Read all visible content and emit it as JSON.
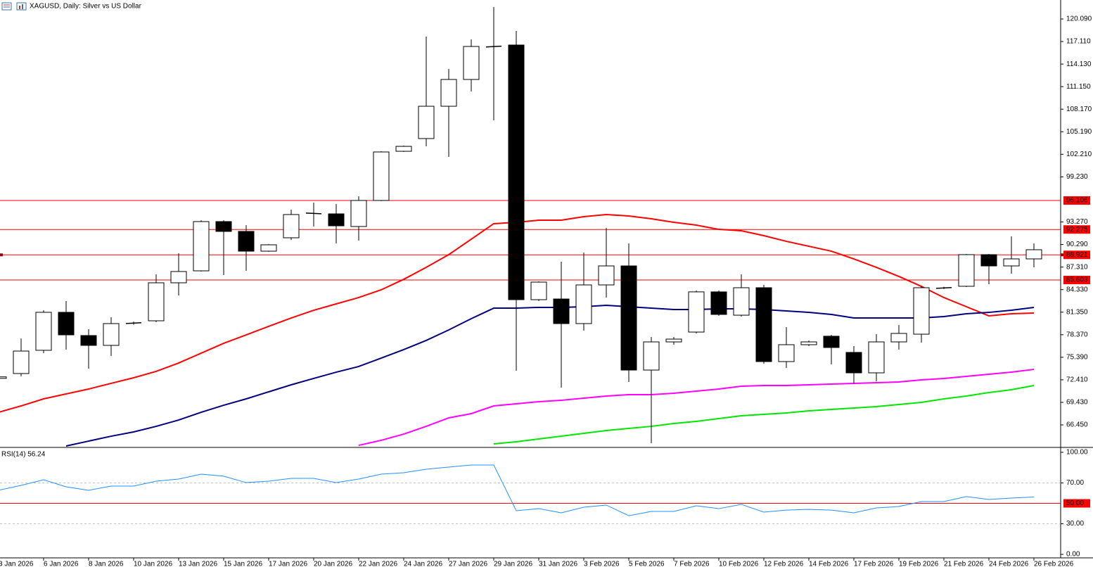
{
  "chart_data": [
    {
      "type": "candlestick",
      "title": "XAGUSD, Daily:  Silver vs US Dollar",
      "categories": [
        "3 Jan 2026",
        null,
        "6 Jan 2026",
        null,
        "8 Jan 2026",
        null,
        "10 Jan 2026",
        null,
        "13 Jan 2026",
        null,
        "15 Jan 2026",
        null,
        "17 Jan 2026",
        null,
        "20 Jan 2026",
        null,
        "22 Jan 2026",
        null,
        "24 Jan 2026",
        null,
        "27 Jan 2026",
        null,
        "29 Jan 2026",
        null,
        "31 Jan 2026",
        null,
        "3 Feb 2026",
        null,
        "5 Feb 2026",
        null,
        "7 Feb 2026",
        null,
        "10 Feb 2026",
        null,
        "12 Feb 2026",
        null,
        "14 Feb 2026",
        null,
        "17 Feb 2026",
        null,
        "19 Feb 2026",
        null,
        "21 Feb 2026",
        null,
        "24 Feb 2026",
        null,
        "26 Feb 2026"
      ],
      "open": [
        72.6,
        73.24,
        76.31,
        81.33,
        78.26,
        76.96,
        79.85,
        80.21,
        85.23,
        86.81,
        93.32,
        92.02,
        89.41,
        91.18,
        94.45,
        94.34,
        92.67,
        96.11,
        102.61,
        104.29,
        108.56,
        112.1,
        116.4,
        116.65,
        83.0,
        83.09,
        79.84,
        84.95,
        87.46,
        73.7,
        77.42,
        78.72,
        84.03,
        80.95,
        84.58,
        74.82,
        77.05,
        78.17,
        76.03,
        73.33,
        77.42,
        78.44,
        84.5,
        84.77,
        88.95,
        87.46,
        88.39
      ],
      "high": [
        72.9,
        77.88,
        81.6,
        82.81,
        79.09,
        80.67,
        80.1,
        86.35,
        89.13,
        93.5,
        93.5,
        92.85,
        90.34,
        94.9,
        95.83,
        95.64,
        96.66,
        102.61,
        103.36,
        117.77,
        113.49,
        117.39,
        121.67,
        118.51,
        85.42,
        88.02,
        89.23,
        92.48,
        90.43,
        78.07,
        78.07,
        84.21,
        84.21,
        86.35,
        84.95,
        79.37,
        77.61,
        78.35,
        76.86,
        78.44,
        79.65,
        84.77,
        84.7,
        89.04,
        89.04,
        91.37,
        90.43
      ],
      "low": [
        72.5,
        72.87,
        75.93,
        76.4,
        73.89,
        75.56,
        79.7,
        80.02,
        83.56,
        86.72,
        86.25,
        86.81,
        89.32,
        90.9,
        92.67,
        90.43,
        90.81,
        96.02,
        102.52,
        103.26,
        101.87,
        110.52,
        106.7,
        73.61,
        82.81,
        71.38,
        78.91,
        83.28,
        72.12,
        64.03,
        77.05,
        78.54,
        80.86,
        80.77,
        74.54,
        73.98,
        76.86,
        74.45,
        71.94,
        72.21,
        76.4,
        77.33,
        84.4,
        84.67,
        85.04,
        86.44,
        87.28
      ],
      "close": [
        72.8,
        76.21,
        81.33,
        78.35,
        76.96,
        79.84,
        79.95,
        85.23,
        86.72,
        93.32,
        92.02,
        89.41,
        90.25,
        94.25,
        94.35,
        92.76,
        96.11,
        102.52,
        103.26,
        108.56,
        112.1,
        116.46,
        116.5,
        83.0,
        85.32,
        79.84,
        84.95,
        87.46,
        73.7,
        77.42,
        77.79,
        84.03,
        81.05,
        84.58,
        74.82,
        77.05,
        77.42,
        76.68,
        73.33,
        77.42,
        78.54,
        84.58,
        84.6,
        88.95,
        87.46,
        88.39,
        89.6
      ],
      "up_color": "#ffffff",
      "down_color": "#000000",
      "wick_color": "#000000",
      "lines": [
        {
          "color": "#ff0000",
          "values": [
            68.12,
            68.96,
            69.89,
            70.54,
            71.19,
            71.94,
            72.68,
            73.52,
            74.63,
            75.93,
            77.23,
            78.35,
            79.47,
            80.58,
            81.6,
            82.44,
            83.28,
            84.3,
            85.69,
            87.27,
            88.95,
            90.99,
            93.04,
            93.22,
            93.5,
            93.5,
            93.97,
            94.25,
            94.06,
            93.69,
            93.22,
            92.85,
            92.29,
            92.11,
            91.46,
            90.71,
            90.06,
            89.41,
            88.39,
            87.27,
            86.07,
            84.76,
            83.28,
            82.07,
            80.86,
            81.14,
            81.23
          ]
        },
        {
          "color": "#000080",
          "values": [
            null,
            null,
            null,
            63.66,
            64.31,
            64.96,
            65.52,
            66.26,
            67.1,
            68.12,
            69.05,
            69.89,
            70.82,
            71.75,
            72.59,
            73.42,
            74.17,
            75.28,
            76.4,
            77.61,
            79.0,
            80.49,
            81.88,
            81.88,
            81.98,
            81.98,
            82.07,
            82.25,
            82.07,
            81.88,
            81.7,
            81.7,
            81.79,
            81.79,
            81.7,
            81.51,
            81.32,
            81.05,
            80.58,
            80.58,
            80.58,
            80.58,
            80.77,
            81.14,
            81.32,
            81.6,
            81.98
          ]
        },
        {
          "color": "#ff00ff",
          "values": [
            null,
            null,
            null,
            null,
            null,
            null,
            null,
            null,
            null,
            null,
            null,
            null,
            null,
            null,
            null,
            null,
            63.75,
            64.41,
            65.24,
            66.26,
            67.38,
            67.94,
            68.96,
            69.24,
            69.52,
            69.7,
            69.98,
            70.26,
            70.45,
            70.45,
            70.63,
            70.91,
            71.19,
            71.56,
            71.66,
            71.66,
            71.75,
            71.84,
            71.94,
            72.03,
            72.12,
            72.4,
            72.59,
            72.87,
            73.14,
            73.42,
            73.79
          ]
        },
        {
          "color": "#00e600",
          "values": [
            null,
            null,
            null,
            null,
            null,
            null,
            null,
            null,
            null,
            null,
            null,
            null,
            null,
            null,
            null,
            null,
            null,
            null,
            null,
            null,
            null,
            null,
            63.94,
            64.22,
            64.59,
            64.96,
            65.34,
            65.71,
            65.99,
            66.26,
            66.64,
            66.92,
            67.29,
            67.66,
            67.85,
            68.03,
            68.31,
            68.5,
            68.68,
            68.87,
            69.15,
            69.43,
            69.89,
            70.26,
            70.73,
            71.1,
            71.66
          ]
        }
      ],
      "levels": [
        {
          "value": 96.106,
          "color": "#ff0000"
        },
        {
          "value": 92.275,
          "color": "#ff0000"
        },
        {
          "value": 88.921,
          "color": "#ff0000",
          "end_markers": true
        },
        {
          "value": 85.603,
          "color": "#ff0000"
        }
      ],
      "ylim": [
        63.57,
        122.6
      ],
      "yticks": [
        {
          "value": 120.09,
          "label": "120.090"
        },
        {
          "value": 117.11,
          "label": "117.110"
        },
        {
          "value": 114.13,
          "label": "114.130"
        },
        {
          "value": 111.15,
          "label": "111.150"
        },
        {
          "value": 108.17,
          "label": "108.170"
        },
        {
          "value": 105.19,
          "label": "105.190"
        },
        {
          "value": 102.21,
          "label": "102.210"
        },
        {
          "value": 99.23,
          "label": "99.230"
        },
        {
          "value": 93.27,
          "label": "93.270"
        },
        {
          "value": 90.29,
          "label": "90.290"
        },
        {
          "value": 87.31,
          "label": "87.310"
        },
        {
          "value": 84.33,
          "label": "84.330"
        },
        {
          "value": 81.35,
          "label": "81.350"
        },
        {
          "value": 78.37,
          "label": "78.370"
        },
        {
          "value": 75.39,
          "label": "75.390"
        },
        {
          "value": 72.41,
          "label": "72.410"
        },
        {
          "value": 69.43,
          "label": "69.430"
        },
        {
          "value": 66.45,
          "label": "66.450"
        }
      ]
    },
    {
      "type": "line",
      "title": "RSI(14) 56.24",
      "color": "#1e90ff",
      "values": [
        62.8,
        67.6,
        73.1,
        66.2,
        62.8,
        66.9,
        66.9,
        71.7,
        73.8,
        78.6,
        76.6,
        70.3,
        71.7,
        74.5,
        74.5,
        70.3,
        73.8,
        78.6,
        80.0,
        83.4,
        85.5,
        87.6,
        87.6,
        42.8,
        44.8,
        40.7,
        46.2,
        48.3,
        37.9,
        42.1,
        42.1,
        47.6,
        44.8,
        49.0,
        41.4,
        43.4,
        44.1,
        43.4,
        40.7,
        45.5,
        46.9,
        51.7,
        51.7,
        56.6,
        53.8,
        55.2,
        56.24
      ],
      "levels": [
        {
          "value": 70,
          "color": "#c0c0c0",
          "style": "dashed"
        },
        {
          "value": 50,
          "label": "50.00",
          "color": "#ff0000"
        },
        {
          "value": 30,
          "color": "#c0c0c0",
          "style": "dashed"
        }
      ],
      "ylim": [
        -3.4,
        104.1
      ],
      "yticks": [
        {
          "value": 100,
          "label": "100.00"
        },
        {
          "value": 70,
          "label": "70.00"
        },
        {
          "value": 30,
          "label": "30.00"
        },
        {
          "value": 0,
          "label": "0.00"
        }
      ]
    }
  ]
}
